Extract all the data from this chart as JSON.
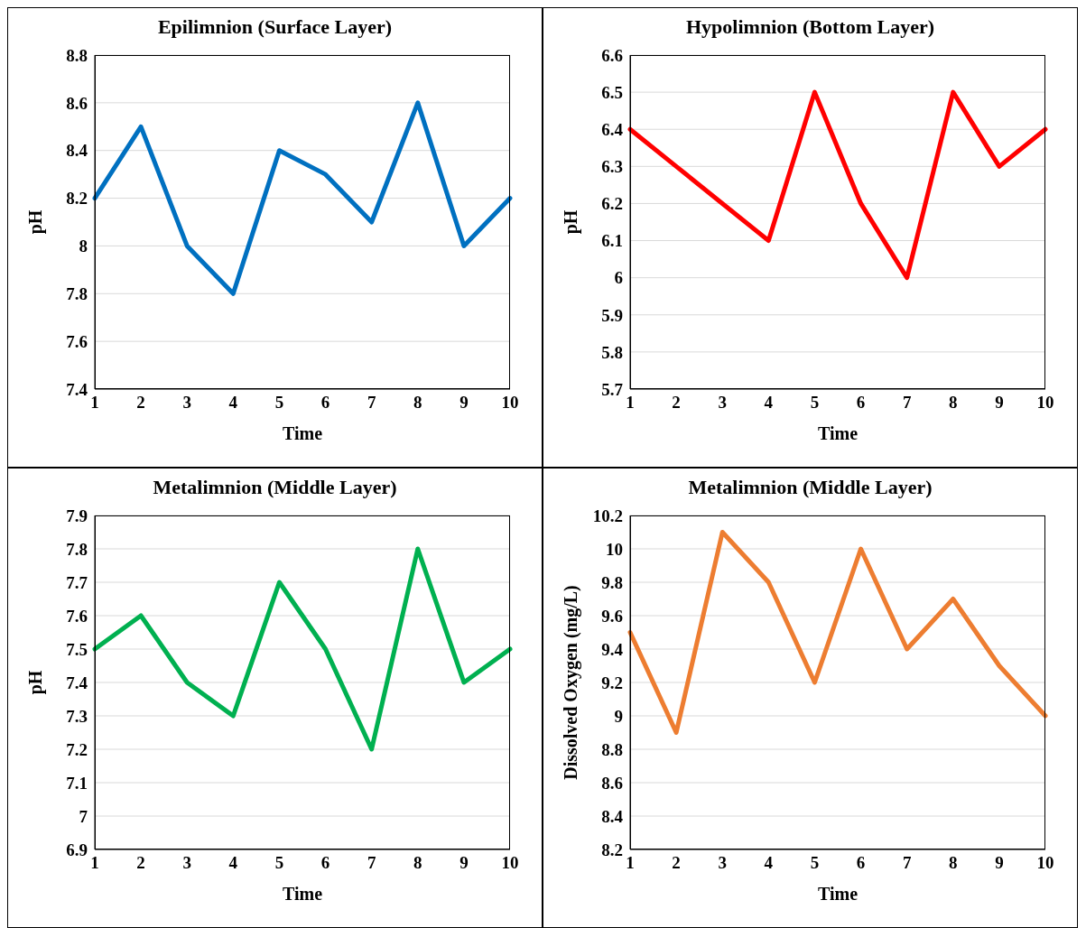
{
  "chart_data": [
    {
      "type": "line",
      "title": "Epilimnion (Surface Layer)",
      "xlabel": "Time",
      "ylabel": "pH",
      "categories": [
        "1",
        "2",
        "3",
        "4",
        "5",
        "6",
        "7",
        "8",
        "9",
        "10"
      ],
      "series": [
        {
          "color": "#0070c0",
          "values": [
            8.2,
            8.5,
            8.0,
            7.8,
            8.4,
            8.3,
            8.1,
            8.6,
            8.0,
            8.2
          ]
        }
      ],
      "ylim": [
        7.4,
        8.8
      ],
      "yticks": [
        7.4,
        7.6,
        7.8,
        8,
        8.2,
        8.4,
        8.6,
        8.8
      ],
      "grid": "y"
    },
    {
      "type": "line",
      "title": "Hypolimnion (Bottom Layer)",
      "xlabel": "Time",
      "ylabel": "pH",
      "categories": [
        "1",
        "2",
        "3",
        "4",
        "5",
        "6",
        "7",
        "8",
        "9",
        "10"
      ],
      "series": [
        {
          "color": "#ff0000",
          "values": [
            6.4,
            6.3,
            6.2,
            6.1,
            6.5,
            6.2,
            6.0,
            6.5,
            6.3,
            6.4
          ]
        }
      ],
      "ylim": [
        5.7,
        6.6
      ],
      "yticks": [
        5.7,
        5.8,
        5.9,
        6,
        6.1,
        6.2,
        6.3,
        6.4,
        6.5,
        6.6
      ],
      "grid": "y"
    },
    {
      "type": "line",
      "title": "Metalimnion (Middle Layer)",
      "xlabel": "Time",
      "ylabel": "pH",
      "categories": [
        "1",
        "2",
        "3",
        "4",
        "5",
        "6",
        "7",
        "8",
        "9",
        "10"
      ],
      "series": [
        {
          "color": "#00b050",
          "values": [
            7.5,
            7.6,
            7.4,
            7.3,
            7.7,
            7.5,
            7.2,
            7.8,
            7.4,
            7.5
          ]
        }
      ],
      "ylim": [
        6.9,
        7.9
      ],
      "yticks": [
        6.9,
        7,
        7.1,
        7.2,
        7.3,
        7.4,
        7.5,
        7.6,
        7.7,
        7.8,
        7.9
      ],
      "grid": "y"
    },
    {
      "type": "line",
      "title": "Metalimnion (Middle Layer)",
      "xlabel": "Time",
      "ylabel": "Dissolved Oxygen (mg/L)",
      "categories": [
        "1",
        "2",
        "3",
        "4",
        "5",
        "6",
        "7",
        "8",
        "9",
        "10"
      ],
      "series": [
        {
          "color": "#ed7d31",
          "values": [
            9.5,
            8.9,
            10.1,
            9.8,
            9.2,
            10.0,
            9.4,
            9.7,
            9.3,
            9.0
          ]
        }
      ],
      "ylim": [
        8.2,
        10.2
      ],
      "yticks": [
        8.2,
        8.4,
        8.6,
        8.8,
        9,
        9.2,
        9.4,
        9.6,
        9.8,
        10,
        10.2
      ],
      "grid": "y"
    }
  ]
}
